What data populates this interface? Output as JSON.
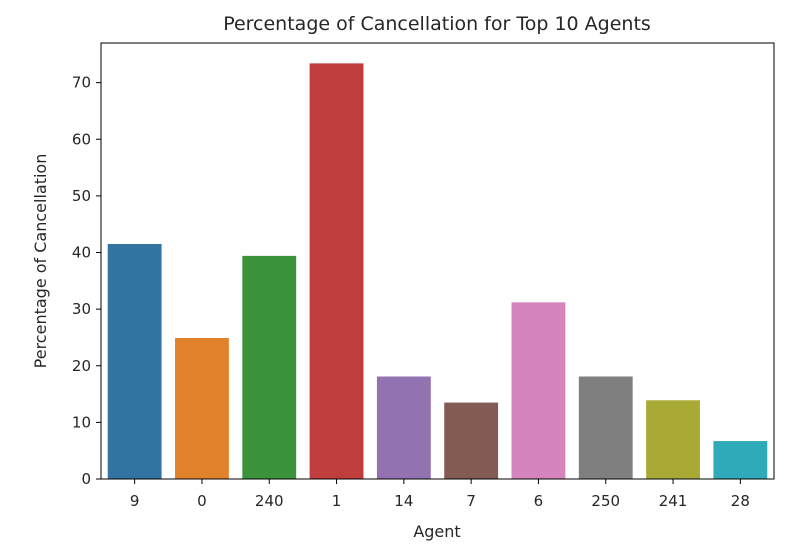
{
  "chart_data": {
    "type": "bar",
    "title": "Percentage of Cancellation for Top 10 Agents",
    "xlabel": "Agent",
    "ylabel": "Percentage of Cancellation",
    "categories": [
      "9",
      "0",
      "240",
      "1",
      "14",
      "7",
      "6",
      "250",
      "241",
      "28"
    ],
    "values": [
      41.5,
      24.9,
      39.4,
      73.4,
      18.1,
      13.5,
      31.2,
      18.1,
      13.9,
      6.7
    ],
    "colors": [
      "#3274a1",
      "#e1812c",
      "#3a923a",
      "#c03d3e",
      "#9372b2",
      "#845b53",
      "#d684bd",
      "#7f7f7f",
      "#a9aa35",
      "#2eaab8"
    ],
    "ylim": [
      0,
      77
    ],
    "yticks": [
      0,
      10,
      20,
      30,
      40,
      50,
      60,
      70
    ],
    "grid": false,
    "legend": "none"
  }
}
